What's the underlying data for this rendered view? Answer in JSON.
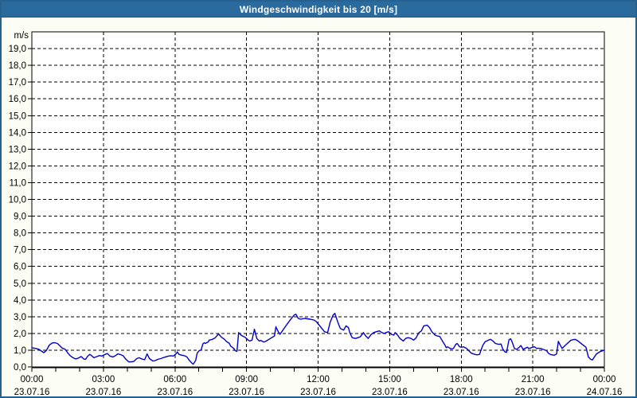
{
  "title": "Windgeschwindigkeit bis 20 [m/s]",
  "colors": {
    "titlebar_bg": "#2B6A9C",
    "titlebar_text": "#FFFFFF",
    "frame_border": "#26618F",
    "page_bg": "#FCFEF6",
    "plot_bg": "#FFFFFF",
    "grid": "#000000",
    "series_line": "#0000CC"
  },
  "chart_data": {
    "type": "line",
    "title": "Windgeschwindigkeit bis 20 [m/s]",
    "y_unit_label": "m/s",
    "ylabel": "m/s",
    "xlabel": "",
    "ylim": [
      0,
      20
    ],
    "ytick_step": 1,
    "ytick_labels": [
      "0,0",
      "1,0",
      "2,0",
      "3,0",
      "4,0",
      "5,0",
      "6,0",
      "7,0",
      "8,0",
      "9,0",
      "10,0",
      "11,0",
      "12,0",
      "13,0",
      "14,0",
      "15,0",
      "16,0",
      "17,0",
      "18,0",
      "19,0"
    ],
    "x_hours_range": [
      0,
      24
    ],
    "x_major_step_hours": 3,
    "x_minor_tick_hours": 1,
    "grid": "dashed",
    "legend_position": "none",
    "xticks": [
      {
        "hour": 0,
        "time": "00:00",
        "date": "23.07.16"
      },
      {
        "hour": 3,
        "time": "03:00",
        "date": "23.07.16"
      },
      {
        "hour": 6,
        "time": "06:00",
        "date": "23.07.16"
      },
      {
        "hour": 9,
        "time": "09:00",
        "date": "23.07.16"
      },
      {
        "hour": 12,
        "time": "12:00",
        "date": "23.07.16"
      },
      {
        "hour": 15,
        "time": "15:00",
        "date": "23.07.16"
      },
      {
        "hour": 18,
        "time": "18:00",
        "date": "23.07.16"
      },
      {
        "hour": 21,
        "time": "21:00",
        "date": "23.07.16"
      },
      {
        "hour": 24,
        "time": "00:00",
        "date": "24.07.16"
      }
    ],
    "series": [
      {
        "name": "Windgeschwindigkeit",
        "color": "#0000CC",
        "points": [
          [
            0,
            1.15
          ],
          [
            0.17,
            1.1
          ],
          [
            0.3,
            1.05
          ],
          [
            0.4,
            0.95
          ],
          [
            0.5,
            0.85
          ],
          [
            0.6,
            0.97
          ],
          [
            0.73,
            1.3
          ],
          [
            0.85,
            1.43
          ],
          [
            0.95,
            1.45
          ],
          [
            1.07,
            1.4
          ],
          [
            1.17,
            1.27
          ],
          [
            1.27,
            1.13
          ],
          [
            1.4,
            1.05
          ],
          [
            1.5,
            0.85
          ],
          [
            1.6,
            0.68
          ],
          [
            1.73,
            0.55
          ],
          [
            1.83,
            0.48
          ],
          [
            1.93,
            0.52
          ],
          [
            2.07,
            0.62
          ],
          [
            2.17,
            0.48
          ],
          [
            2.25,
            0.45
          ],
          [
            2.33,
            0.62
          ],
          [
            2.43,
            0.75
          ],
          [
            2.5,
            0.68
          ],
          [
            2.6,
            0.55
          ],
          [
            2.73,
            0.62
          ],
          [
            2.83,
            0.68
          ],
          [
            2.93,
            0.65
          ],
          [
            3.07,
            0.75
          ],
          [
            3.17,
            0.8
          ],
          [
            3.27,
            0.65
          ],
          [
            3.4,
            0.6
          ],
          [
            3.5,
            0.67
          ],
          [
            3.6,
            0.78
          ],
          [
            3.73,
            0.73
          ],
          [
            3.83,
            0.67
          ],
          [
            3.93,
            0.48
          ],
          [
            4.07,
            0.3
          ],
          [
            4.17,
            0.31
          ],
          [
            4.27,
            0.33
          ],
          [
            4.4,
            0.5
          ],
          [
            4.5,
            0.55
          ],
          [
            4.6,
            0.48
          ],
          [
            4.73,
            0.43
          ],
          [
            4.83,
            0.78
          ],
          [
            4.93,
            0.5
          ],
          [
            5.07,
            0.35
          ],
          [
            5.17,
            0.38
          ],
          [
            5.27,
            0.45
          ],
          [
            5.4,
            0.5
          ],
          [
            5.5,
            0.55
          ],
          [
            5.6,
            0.6
          ],
          [
            5.73,
            0.65
          ],
          [
            5.83,
            0.67
          ],
          [
            5.93,
            0.65
          ],
          [
            6.07,
            0.82
          ],
          [
            6.1,
            0.9
          ],
          [
            6.17,
            0.75
          ],
          [
            6.27,
            0.71
          ],
          [
            6.4,
            0.67
          ],
          [
            6.5,
            0.6
          ],
          [
            6.6,
            0.4
          ],
          [
            6.73,
            0.2
          ],
          [
            6.77,
            0.17
          ],
          [
            6.87,
            0.4
          ],
          [
            6.93,
            0.82
          ],
          [
            7,
            0.95
          ],
          [
            7.1,
            1.02
          ],
          [
            7.17,
            1.38
          ],
          [
            7.23,
            1.45
          ],
          [
            7.27,
            1.4
          ],
          [
            7.4,
            1.5
          ],
          [
            7.43,
            1.6
          ],
          [
            7.57,
            1.65
          ],
          [
            7.67,
            1.72
          ],
          [
            7.77,
            1.88
          ],
          [
            7.83,
            1.97
          ],
          [
            7.93,
            1.8
          ],
          [
            8.07,
            1.65
          ],
          [
            8.17,
            1.5
          ],
          [
            8.27,
            1.42
          ],
          [
            8.33,
            1.25
          ],
          [
            8.47,
            1.1
          ],
          [
            8.53,
            0.97
          ],
          [
            8.6,
            0.93
          ],
          [
            8.67,
            2.05
          ],
          [
            8.77,
            1.9
          ],
          [
            8.83,
            1.85
          ],
          [
            8.93,
            1.78
          ],
          [
            9.07,
            1.6
          ],
          [
            9.13,
            1.55
          ],
          [
            9.23,
            1.6
          ],
          [
            9.33,
            2.25
          ],
          [
            9.43,
            1.7
          ],
          [
            9.53,
            1.55
          ],
          [
            9.6,
            1.58
          ],
          [
            9.73,
            1.48
          ],
          [
            9.83,
            1.55
          ],
          [
            10,
            1.7
          ],
          [
            10.17,
            1.85
          ],
          [
            10.23,
            2.4
          ],
          [
            10.33,
            2.1
          ],
          [
            10.4,
            1.95
          ],
          [
            10.5,
            2.15
          ],
          [
            10.67,
            2.5
          ],
          [
            10.83,
            2.8
          ],
          [
            11,
            3.1
          ],
          [
            11.07,
            3.15
          ],
          [
            11.17,
            2.9
          ],
          [
            11.27,
            2.85
          ],
          [
            11.43,
            2.9
          ],
          [
            11.67,
            2.85
          ],
          [
            11.83,
            2.8
          ],
          [
            11.93,
            2.7
          ],
          [
            12.1,
            2.4
          ],
          [
            12.27,
            2.1
          ],
          [
            12.4,
            2.05
          ],
          [
            12.5,
            2.65
          ],
          [
            12.63,
            3.1
          ],
          [
            12.7,
            3.2
          ],
          [
            12.83,
            2.65
          ],
          [
            12.93,
            2.3
          ],
          [
            13.07,
            2.2
          ],
          [
            13.17,
            2.45
          ],
          [
            13.27,
            2.35
          ],
          [
            13.33,
            2.05
          ],
          [
            13.43,
            1.75
          ],
          [
            13.57,
            1.7
          ],
          [
            13.67,
            1.75
          ],
          [
            13.77,
            1.8
          ],
          [
            13.9,
            2.05
          ],
          [
            14,
            1.85
          ],
          [
            14.1,
            1.7
          ],
          [
            14.23,
            1.95
          ],
          [
            14.33,
            2.05
          ],
          [
            14.43,
            2.1
          ],
          [
            14.57,
            2.15
          ],
          [
            14.67,
            2.05
          ],
          [
            14.77,
            2
          ],
          [
            14.9,
            2.08
          ],
          [
            14.97,
            2.1
          ],
          [
            15.07,
            1.95
          ],
          [
            15.17,
            1.9
          ],
          [
            15.23,
            2.05
          ],
          [
            15.33,
            1.9
          ],
          [
            15.43,
            1.7
          ],
          [
            15.57,
            1.55
          ],
          [
            15.67,
            1.7
          ],
          [
            15.77,
            1.75
          ],
          [
            15.9,
            1.7
          ],
          [
            16,
            1.6
          ],
          [
            16.1,
            1.72
          ],
          [
            16.23,
            2.05
          ],
          [
            16.33,
            2.15
          ],
          [
            16.43,
            2.45
          ],
          [
            16.57,
            2.5
          ],
          [
            16.67,
            2.35
          ],
          [
            16.77,
            2.1
          ],
          [
            16.9,
            1.9
          ],
          [
            17,
            1.85
          ],
          [
            17.1,
            1.82
          ],
          [
            17.23,
            1.5
          ],
          [
            17.3,
            1.35
          ],
          [
            17.37,
            1.15
          ],
          [
            17.43,
            1.2
          ],
          [
            17.57,
            1.08
          ],
          [
            17.67,
            1.1
          ],
          [
            17.77,
            1.35
          ],
          [
            17.83,
            1.4
          ],
          [
            17.93,
            1.2
          ],
          [
            18.03,
            1.18
          ],
          [
            18.1,
            1.2
          ],
          [
            18.23,
            1.1
          ],
          [
            18.33,
            0.95
          ],
          [
            18.43,
            0.82
          ],
          [
            18.57,
            0.75
          ],
          [
            18.67,
            0.72
          ],
          [
            18.77,
            0.75
          ],
          [
            18.9,
            1.28
          ],
          [
            19,
            1.5
          ],
          [
            19.07,
            1.55
          ],
          [
            19.17,
            1.62
          ],
          [
            19.23,
            1.65
          ],
          [
            19.33,
            1.55
          ],
          [
            19.43,
            1.4
          ],
          [
            19.57,
            1.35
          ],
          [
            19.67,
            1.37
          ],
          [
            19.73,
            1.1
          ],
          [
            19.83,
            0.9
          ],
          [
            19.9,
            0.87
          ],
          [
            20,
            1.62
          ],
          [
            20.07,
            1.68
          ],
          [
            20.13,
            1.5
          ],
          [
            20.23,
            1.1
          ],
          [
            20.33,
            1.05
          ],
          [
            20.43,
            1.18
          ],
          [
            20.5,
            1.28
          ],
          [
            20.6,
            1.05
          ],
          [
            20.67,
            1.1
          ],
          [
            20.77,
            1.18
          ],
          [
            20.83,
            1.1
          ],
          [
            20.9,
            1.13
          ],
          [
            21,
            1.18
          ],
          [
            21.07,
            1.2
          ],
          [
            21.17,
            1.1
          ],
          [
            21.23,
            1.12
          ],
          [
            21.33,
            1.1
          ],
          [
            21.43,
            1.05
          ],
          [
            21.57,
            0.98
          ],
          [
            21.67,
            0.8
          ],
          [
            21.77,
            0.73
          ],
          [
            21.9,
            0.7
          ],
          [
            22,
            0.78
          ],
          [
            22.07,
            1.53
          ],
          [
            22.17,
            1.25
          ],
          [
            22.23,
            1.1
          ],
          [
            22.37,
            1.3
          ],
          [
            22.6,
            1.6
          ],
          [
            22.77,
            1.65
          ],
          [
            22.9,
            1.55
          ],
          [
            23.07,
            1.35
          ],
          [
            23.23,
            1.18
          ],
          [
            23.33,
            0.6
          ],
          [
            23.43,
            0.45
          ],
          [
            23.5,
            0.42
          ],
          [
            23.67,
            0.78
          ],
          [
            23.83,
            0.92
          ],
          [
            24,
            1
          ]
        ]
      }
    ]
  }
}
